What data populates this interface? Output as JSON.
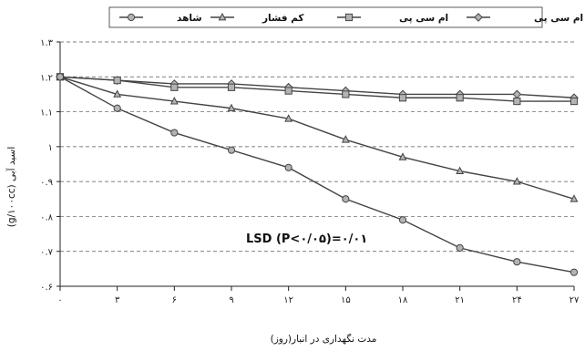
{
  "chart_data": {
    "type": "line",
    "title": "",
    "xlabel": "مدت نگهداری در انبار(روز)",
    "ylabel": "اسید آبی (g/۱۰۰cc)",
    "x": [
      0,
      3,
      6,
      9,
      12,
      15,
      18,
      21,
      24,
      27
    ],
    "x_tick_labels": [
      "۰",
      "۳",
      "۶",
      "۹",
      "۱۲",
      "۱۵",
      "۱۸",
      "۲۱",
      "۲۴",
      "۲۷"
    ],
    "ylim": [
      0.6,
      1.3
    ],
    "y_ticks": [
      0.6,
      0.7,
      0.8,
      0.9,
      1.0,
      1.1,
      1.2,
      1.3
    ],
    "y_tick_labels": [
      "۰.۶",
      "۰.۷",
      "۰.۸",
      "۰.۹",
      "۱",
      "۱.۱",
      "۱.۲",
      "۱.۳"
    ],
    "grid": "horizontal-dashed",
    "legend_position": "top",
    "annotation": "LSD (P<۰/۰۵)=۰/۰۱",
    "series": [
      {
        "name": "کم فشار + ام سی پی",
        "marker": "diamond",
        "values": [
          1.2,
          1.19,
          1.18,
          1.18,
          1.17,
          1.16,
          1.15,
          1.15,
          1.15,
          1.14
        ]
      },
      {
        "name": "ام سی پی",
        "marker": "square",
        "values": [
          1.2,
          1.19,
          1.17,
          1.17,
          1.16,
          1.15,
          1.14,
          1.14,
          1.13,
          1.13
        ]
      },
      {
        "name": "کم فشار",
        "marker": "triangle",
        "values": [
          1.2,
          1.15,
          1.13,
          1.11,
          1.08,
          1.02,
          0.97,
          0.93,
          0.9,
          0.85
        ]
      },
      {
        "name": "شاهد",
        "marker": "circle",
        "values": [
          1.2,
          1.11,
          1.04,
          0.99,
          0.94,
          0.85,
          0.79,
          0.71,
          0.67,
          0.64
        ]
      }
    ],
    "colors": {
      "line": "#444444",
      "marker_fill": "#b3b3b3",
      "marker_stroke": "#444444",
      "grid": "#555555"
    }
  }
}
